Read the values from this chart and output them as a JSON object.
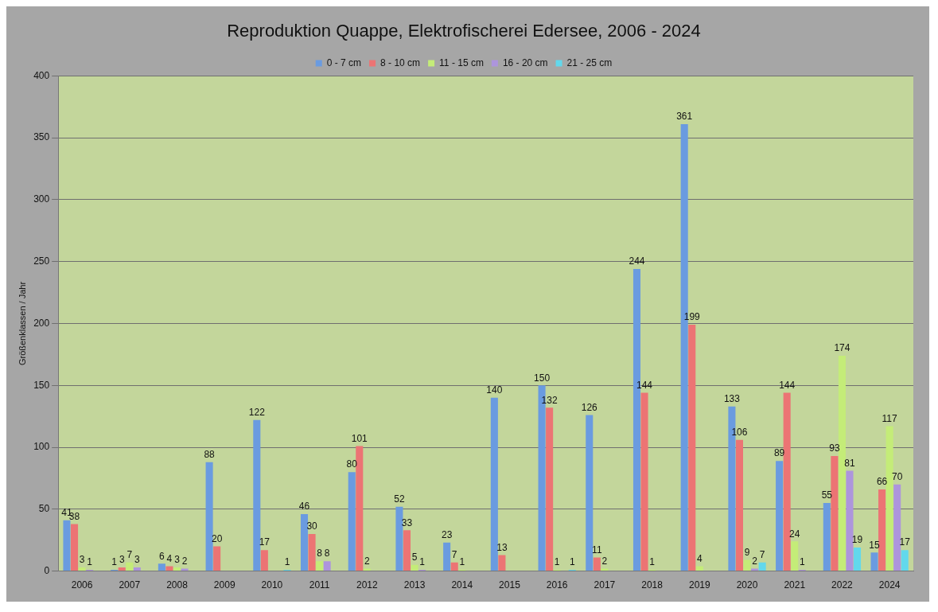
{
  "chart_data": {
    "type": "bar",
    "title": "Reproduktion Quappe, Elektrofischerei Edersee, 2006 - 2024",
    "ylabel": "Größenklassen / Jahr",
    "categories": [
      "2006",
      "2007",
      "2008",
      "2009",
      "2010",
      "2011",
      "2012",
      "2013",
      "2014",
      "2015",
      "2016",
      "2017",
      "2018",
      "2019",
      "2020",
      "2021",
      "2022",
      "2024"
    ],
    "series": [
      {
        "name": "0 - 7 cm",
        "color": "#6a9be0",
        "values": [
          41,
          1,
          6,
          88,
          122,
          46,
          80,
          52,
          23,
          140,
          150,
          126,
          244,
          361,
          133,
          89,
          55,
          15
        ]
      },
      {
        "name": "8 - 10 cm",
        "color": "#ec7474",
        "values": [
          38,
          3,
          4,
          20,
          17,
          30,
          101,
          33,
          7,
          13,
          132,
          11,
          144,
          199,
          106,
          144,
          93,
          66
        ]
      },
      {
        "name": "11 - 15 cm",
        "color": "#c4ec78",
        "values": [
          3,
          7,
          3,
          null,
          null,
          8,
          2,
          5,
          1,
          null,
          1,
          2,
          1,
          4,
          9,
          24,
          174,
          117
        ]
      },
      {
        "name": "16 - 20 cm",
        "color": "#ad95dc",
        "values": [
          1,
          3,
          2,
          null,
          null,
          8,
          null,
          1,
          null,
          null,
          null,
          null,
          null,
          null,
          2,
          1,
          81,
          70
        ]
      },
      {
        "name": "21 - 25 cm",
        "color": "#62d8ec",
        "values": [
          null,
          null,
          null,
          null,
          1,
          null,
          null,
          null,
          null,
          null,
          1,
          null,
          null,
          null,
          7,
          null,
          19,
          17
        ]
      }
    ],
    "ylim": [
      0,
      400
    ],
    "yticks": [
      0,
      50,
      100,
      150,
      200,
      250,
      300,
      350,
      400
    ],
    "grid": "y",
    "legend": "top",
    "data_labels": true
  }
}
